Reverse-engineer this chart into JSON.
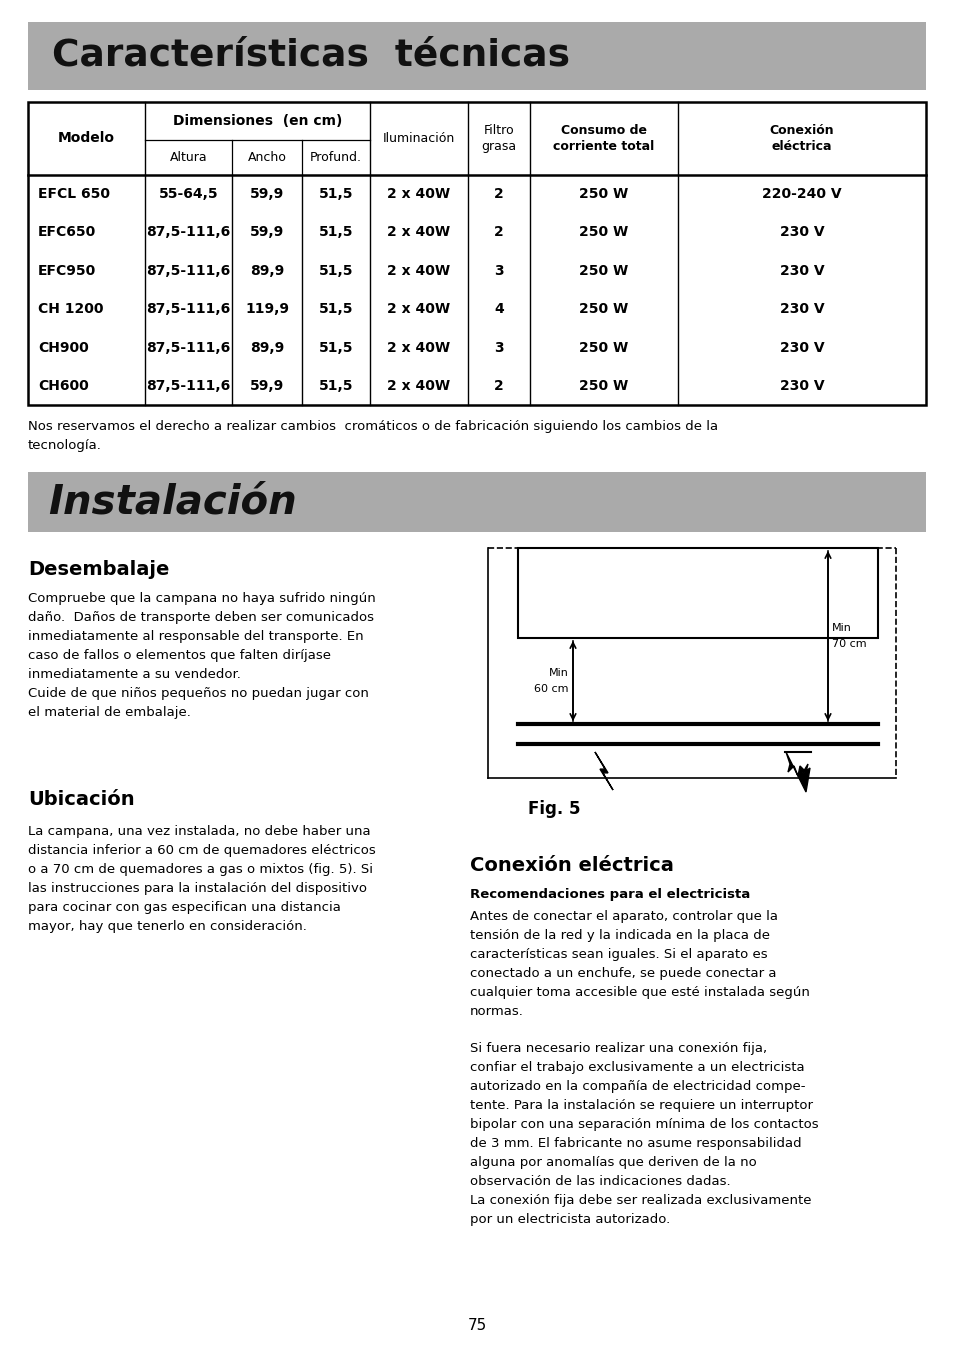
{
  "page_bg": "#ffffff",
  "section1_title": "Características  técnicas",
  "section1_bg": "#a8a8a8",
  "section2_title": "Instalación",
  "section2_bg": "#a8a8a8",
  "table_rows": [
    [
      "EFCL 650",
      "55-64,5",
      "59,9",
      "51,5",
      "2 x 40W",
      "2",
      "250 W",
      "220-240 V"
    ],
    [
      "EFC650",
      "87,5-111,6",
      "59,9",
      "51,5",
      "2 x 40W",
      "2",
      "250 W",
      "230 V"
    ],
    [
      "EFC950",
      "87,5-111,6",
      "89,9",
      "51,5",
      "2 x 40W",
      "3",
      "250 W",
      "230 V"
    ],
    [
      "CH 1200",
      "87,5-111,6",
      "119,9",
      "51,5",
      "2 x 40W",
      "4",
      "250 W",
      "230 V"
    ],
    [
      "CH900",
      "87,5-111,6",
      "89,9",
      "51,5",
      "2 x 40W",
      "3",
      "250 W",
      "230 V"
    ],
    [
      "CH600",
      "87,5-111,6",
      "59,9",
      "51,5",
      "2 x 40W",
      "2",
      "250 W",
      "230 V"
    ]
  ],
  "disclaimer": "Nos reservamos el derecho a realizar cambios  cromáticos o de fabricación siguiendo los cambios de la\ntecnología.",
  "desembalaje_title": "Desembalaje",
  "desembalaje_text": "Compruebe que la campana no haya sufrido ningún\ndaño.  Daños de transporte deben ser comunicados\ninmediatamente al responsable del transporte. En\ncaso de fallos o elementos que falten diríjase\ninmediatamente a su vendedor.\nCuide de que niños pequeños no puedan jugar con\nel material de embalaje.",
  "ubicacion_title": "Ubicación",
  "ubicacion_text": "La campana, una vez instalada, no debe haber una\ndistancia inferior a 60 cm de quemadores eléctricos\no a 70 cm de quemadores a gas o mixtos (fig. 5). Si\nlas instrucciones para la instalación del dispositivo\npara cocinar con gas especifican una distancia\nmayor, hay que tenerlo en consideración.",
  "fig5_caption": "Fig. 5",
  "conexion_title": "Conexión eléctrica",
  "recomendaciones_title": "Recomendaciones para el electricista",
  "conexion_text1": "Antes de conectar el aparato, controlar que la\ntensión de la red y la indicada en la placa de\ncaracterísticas sean iguales. Si el aparato es\nconectado a un enchufe, se puede conectar a\ncualquier toma accesible que esté instalada según\nnormas.",
  "conexion_text2": "Si fuera necesario realizar una conexión fija,\nconfiar el trabajo exclusivamente a un electricista\nautorizado en la compañía de electricidad compe-\ntente. Para la instalación se requiere un interruptor\nbipolar con una separación mínima de los contactos\nde 3 mm. El fabricante no asume responsabilidad\nalguna por anomalías que deriven de la no\nobservación de las indicaciones dadas.\nLa conexión fija debe ser realizada exclusivamente\npor un electricista autorizado.",
  "page_number": "75"
}
